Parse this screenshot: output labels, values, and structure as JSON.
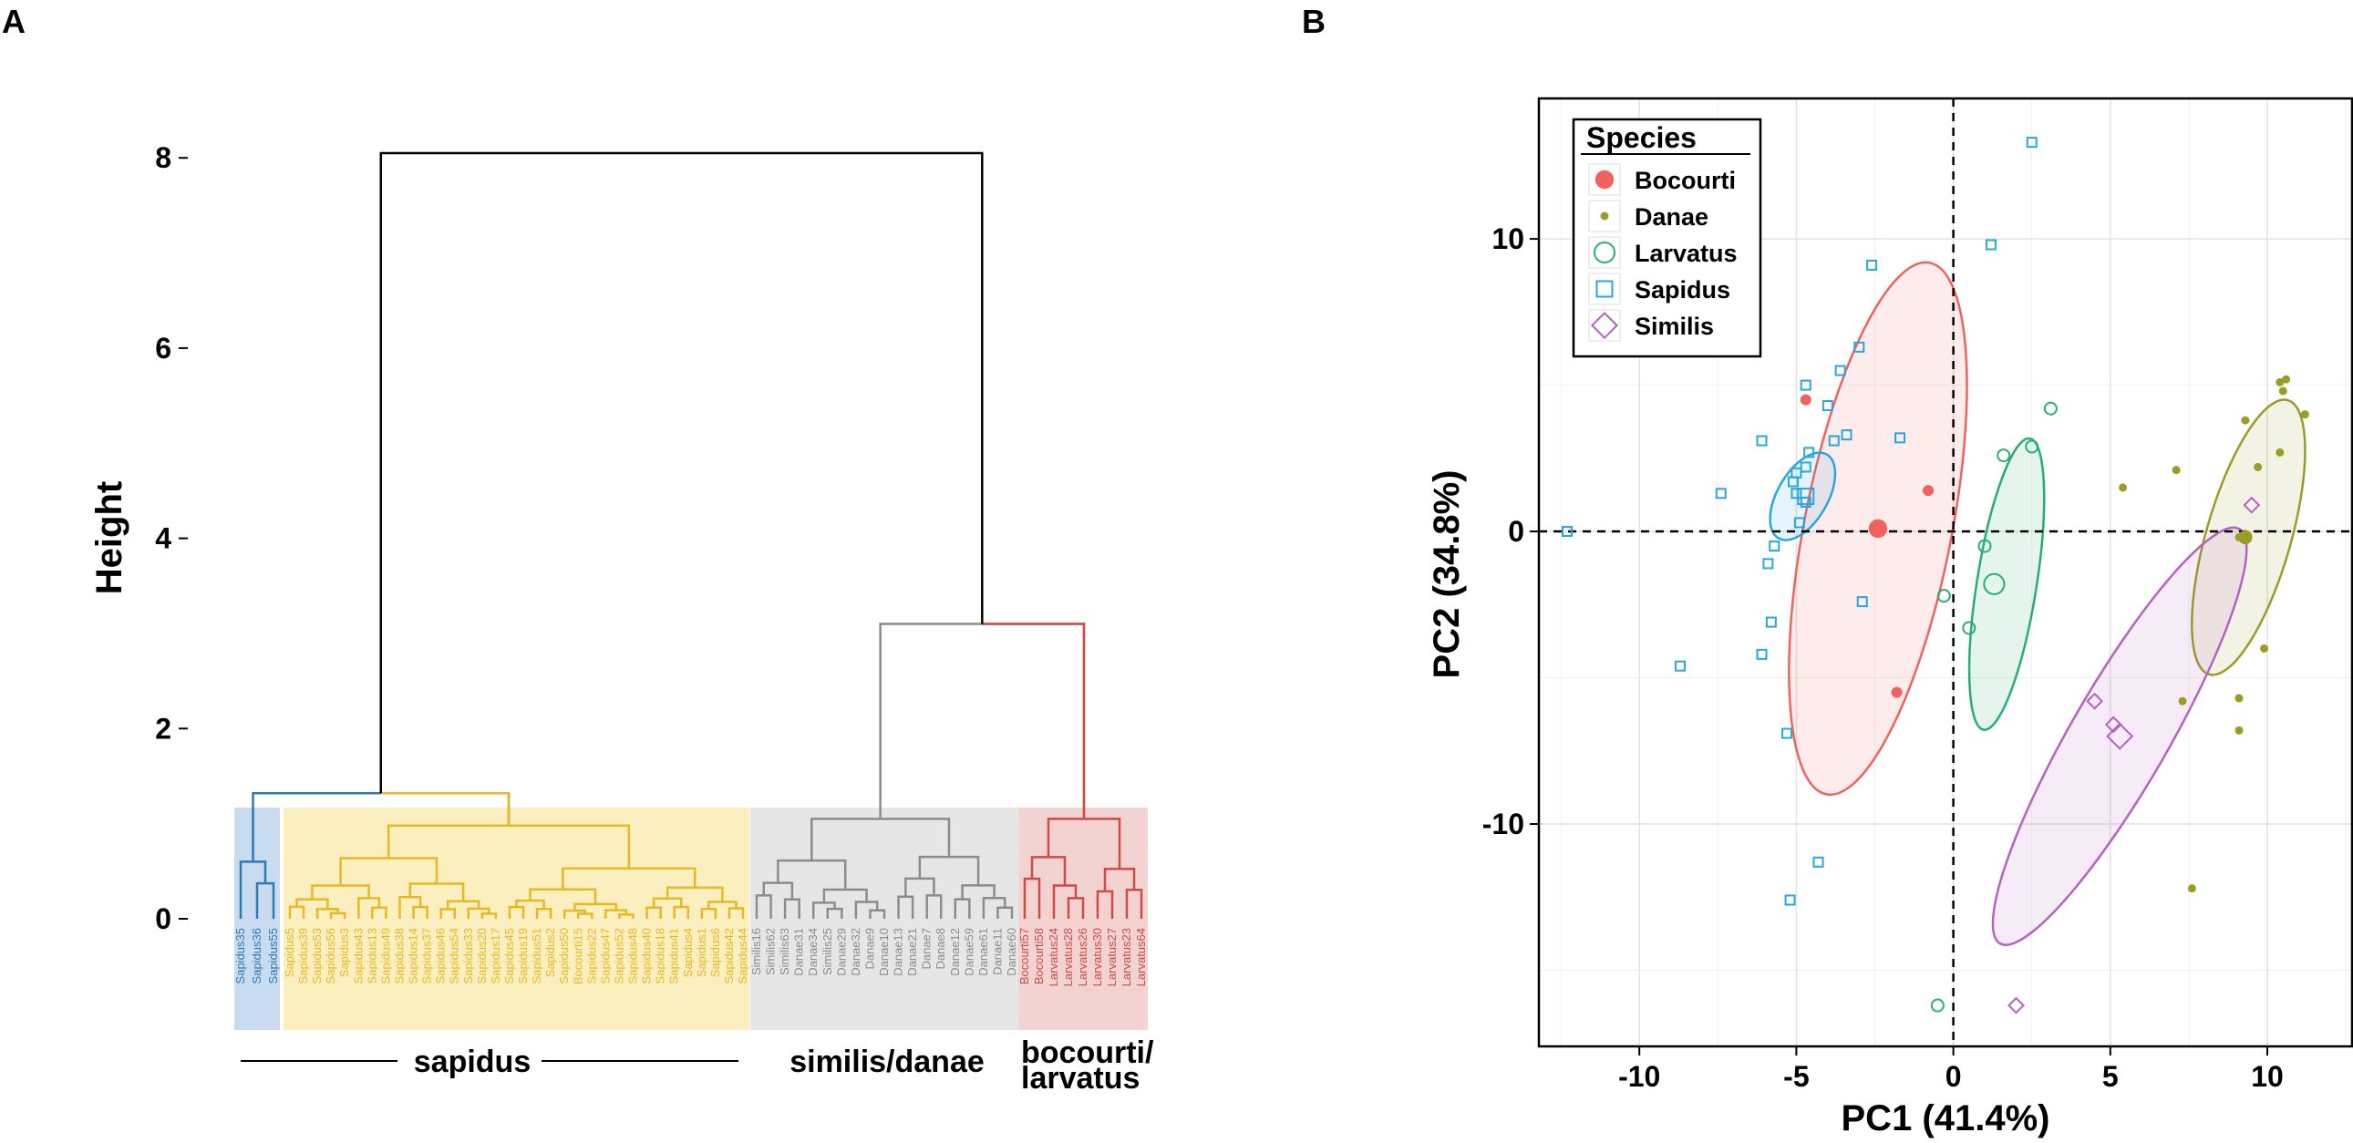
{
  "panels": {
    "a": "A",
    "b": "B"
  },
  "colors": {
    "blue": "#2c7bb6",
    "yellow": "#e8b923",
    "gray": "#8c8c8c",
    "red": "#d04a48",
    "bocourti": "#f0625d",
    "danae": "#9a9c26",
    "larvatus": "#27ae75",
    "sapidus": "#2aa6dc",
    "similis": "#b463c0"
  },
  "chart_data": [
    {
      "type": "dendrogram",
      "ylabel": "Height",
      "y_ticks": [
        "0",
        "2",
        "4",
        "6",
        "8"
      ],
      "ylim": [
        0,
        8.1
      ],
      "root_height": 8.05,
      "groups": [
        {
          "name": "sapidus",
          "label": "sapidus",
          "color_key": "yellow",
          "merge_height": 1.3
        },
        {
          "name": "similis-danae",
          "label": "similis/danae",
          "color_key": "gray",
          "merge_height": 1.05
        },
        {
          "name": "bocourti-larvatus",
          "label": "bocourti/ larvatus",
          "color_key": "red",
          "merge_height": 1.05
        }
      ],
      "clade_merge_heights": {
        "sapidus_clade": 1.32,
        "similis_bocourti_clade": 3.1
      },
      "leaves": [
        {
          "label": "Sapidus35",
          "group": "blue"
        },
        {
          "label": "Sapidus36",
          "group": "blue"
        },
        {
          "label": "Sapidus55",
          "group": "blue"
        },
        {
          "label": "Sapidus5",
          "group": "yellow"
        },
        {
          "label": "Sapidus39",
          "group": "yellow"
        },
        {
          "label": "Sapidus53",
          "group": "yellow"
        },
        {
          "label": "Sapidus56",
          "group": "yellow"
        },
        {
          "label": "Sapidus3",
          "group": "yellow"
        },
        {
          "label": "Sapidus43",
          "group": "yellow"
        },
        {
          "label": "Sapidus13",
          "group": "yellow"
        },
        {
          "label": "Sapidus49",
          "group": "yellow"
        },
        {
          "label": "Sapidus38",
          "group": "yellow"
        },
        {
          "label": "Sapidus14",
          "group": "yellow"
        },
        {
          "label": "Sapidus37",
          "group": "yellow"
        },
        {
          "label": "Sapidus46",
          "group": "yellow"
        },
        {
          "label": "Sapidus54",
          "group": "yellow"
        },
        {
          "label": "Sapidus33",
          "group": "yellow"
        },
        {
          "label": "Sapidus20",
          "group": "yellow"
        },
        {
          "label": "Sapidus17",
          "group": "yellow"
        },
        {
          "label": "Sapidus45",
          "group": "yellow"
        },
        {
          "label": "Sapidus19",
          "group": "yellow"
        },
        {
          "label": "Sapidus51",
          "group": "yellow"
        },
        {
          "label": "Sapidus2",
          "group": "yellow"
        },
        {
          "label": "Sapidus50",
          "group": "yellow"
        },
        {
          "label": "Bocourti15",
          "group": "yellow"
        },
        {
          "label": "Sapidus22",
          "group": "yellow"
        },
        {
          "label": "Sapidus47",
          "group": "yellow"
        },
        {
          "label": "Sapidus52",
          "group": "yellow"
        },
        {
          "label": "Sapidus48",
          "group": "yellow"
        },
        {
          "label": "Sapidus40",
          "group": "yellow"
        },
        {
          "label": "Sapidus18",
          "group": "yellow"
        },
        {
          "label": "Sapidus41",
          "group": "yellow"
        },
        {
          "label": "Sapidus4",
          "group": "yellow"
        },
        {
          "label": "Sapidus1",
          "group": "yellow"
        },
        {
          "label": "Sapidus6",
          "group": "yellow"
        },
        {
          "label": "Sapidus42",
          "group": "yellow"
        },
        {
          "label": "Sapidus44",
          "group": "yellow"
        },
        {
          "label": "Similis16",
          "group": "gray"
        },
        {
          "label": "Similis62",
          "group": "gray"
        },
        {
          "label": "Similis63",
          "group": "gray"
        },
        {
          "label": "Danae31",
          "group": "gray"
        },
        {
          "label": "Danae34",
          "group": "gray"
        },
        {
          "label": "Similis25",
          "group": "gray"
        },
        {
          "label": "Danae29",
          "group": "gray"
        },
        {
          "label": "Danae32",
          "group": "gray"
        },
        {
          "label": "Danae9",
          "group": "gray"
        },
        {
          "label": "Danae10",
          "group": "gray"
        },
        {
          "label": "Danae13",
          "group": "gray"
        },
        {
          "label": "Danae21",
          "group": "gray"
        },
        {
          "label": "Danae7",
          "group": "gray"
        },
        {
          "label": "Danae8",
          "group": "gray"
        },
        {
          "label": "Danae12",
          "group": "gray"
        },
        {
          "label": "Danae59",
          "group": "gray"
        },
        {
          "label": "Danae61",
          "group": "gray"
        },
        {
          "label": "Danae11",
          "group": "gray"
        },
        {
          "label": "Danae60",
          "group": "gray"
        },
        {
          "label": "Bocourti57",
          "group": "red"
        },
        {
          "label": "Bocourti58",
          "group": "red"
        },
        {
          "label": "Larvatus24",
          "group": "red"
        },
        {
          "label": "Larvatus28",
          "group": "red"
        },
        {
          "label": "Larvatus26",
          "group": "red"
        },
        {
          "label": "Larvatus30",
          "group": "red"
        },
        {
          "label": "Larvatus27",
          "group": "red"
        },
        {
          "label": "Larvatus23",
          "group": "red"
        },
        {
          "label": "Larvatus64",
          "group": "red"
        }
      ]
    },
    {
      "type": "scatter",
      "xlabel": "PC1 (41.4%)",
      "ylabel": "PC2 (34.8%)",
      "xlim": [
        -13.2,
        12.7
      ],
      "ylim": [
        -17.6,
        14.8
      ],
      "x_ticks": [
        -10,
        -5,
        0,
        5,
        10
      ],
      "y_ticks": [
        -10,
        0,
        10
      ],
      "x_tick_labels": [
        "-10",
        "-5",
        "0",
        "5",
        "10"
      ],
      "y_tick_labels": [
        "-10",
        "0",
        "10"
      ],
      "grid": true,
      "reference_lines": {
        "x": 0,
        "y": 0,
        "style": "dashed"
      },
      "legend": {
        "title": "Species",
        "position": "top-left",
        "entries": [
          {
            "label": "Bocourti",
            "color_key": "bocourti",
            "shape": "filled-circle"
          },
          {
            "label": "Danae",
            "color_key": "danae",
            "shape": "small-filled-circle"
          },
          {
            "label": "Larvatus",
            "color_key": "larvatus",
            "shape": "open-circle"
          },
          {
            "label": "Sapidus",
            "color_key": "sapidus",
            "shape": "open-square"
          },
          {
            "label": "Similis",
            "color_key": "similis",
            "shape": "open-diamond"
          }
        ]
      },
      "series": [
        {
          "name": "Bocourti",
          "color_key": "bocourti",
          "shape": "filled-circle",
          "centroid": [
            -2.4,
            0.1
          ],
          "ellipse": {
            "center": [
              -2.4,
              0.1
            ],
            "rx": 11.2,
            "ry": 2.35,
            "angle_deg": -79
          },
          "points": [
            [
              -4.7,
              4.5
            ],
            [
              -0.8,
              1.4
            ],
            [
              -1.8,
              -5.5
            ]
          ]
        },
        {
          "name": "Danae",
          "color_key": "danae",
          "shape": "small-filled-circle",
          "centroid": [
            9.3,
            -0.2
          ],
          "ellipse": {
            "center": [
              9.4,
              -0.2
            ],
            "rx": 5.9,
            "ry": 1.35,
            "angle_deg": -74
          },
          "points": [
            [
              10.4,
              5.1
            ],
            [
              10.6,
              5.2
            ],
            [
              10.5,
              4.8
            ],
            [
              11.2,
              4.0
            ],
            [
              9.3,
              3.8
            ],
            [
              10.4,
              2.7
            ],
            [
              9.7,
              2.2
            ],
            [
              7.1,
              2.1
            ],
            [
              5.4,
              1.5
            ],
            [
              9.1,
              -0.2
            ],
            [
              9.9,
              -4.0
            ],
            [
              7.3,
              -5.8
            ],
            [
              9.1,
              -5.7
            ],
            [
              9.1,
              -6.8
            ],
            [
              7.6,
              -12.2
            ]
          ]
        },
        {
          "name": "Larvatus",
          "color_key": "larvatus",
          "shape": "open-circle",
          "centroid": [
            1.3,
            -1.8
          ],
          "ellipse": {
            "center": [
              1.7,
              -1.8
            ],
            "rx": 6.1,
            "ry": 0.95,
            "angle_deg": -81
          },
          "points": [
            [
              3.1,
              4.2
            ],
            [
              2.5,
              2.9
            ],
            [
              1.6,
              2.6
            ],
            [
              1.0,
              -0.5
            ],
            [
              -0.3,
              -2.2
            ],
            [
              0.5,
              -3.3
            ],
            [
              -0.5,
              -16.2
            ]
          ]
        },
        {
          "name": "Sapidus",
          "color_key": "sapidus",
          "shape": "open-square",
          "centroid": [
            -4.7,
            1.2
          ],
          "ellipse": {
            "center": [
              -4.8,
              1.2
            ],
            "rx": 2.0,
            "ry": 0.8,
            "angle_deg": -60
          },
          "points": [
            [
              2.5,
              13.3
            ],
            [
              1.2,
              9.8
            ],
            [
              -2.6,
              9.1
            ],
            [
              -3.0,
              6.3
            ],
            [
              -3.6,
              5.5
            ],
            [
              -4.7,
              5.0
            ],
            [
              -4.0,
              4.3
            ],
            [
              -3.8,
              3.1
            ],
            [
              -3.4,
              3.3
            ],
            [
              -1.7,
              3.2
            ],
            [
              -6.1,
              3.1
            ],
            [
              -4.6,
              2.7
            ],
            [
              -4.7,
              2.2
            ],
            [
              -5.0,
              2.0
            ],
            [
              -5.1,
              1.7
            ],
            [
              -7.4,
              1.3
            ],
            [
              -5.0,
              1.3
            ],
            [
              -4.7,
              1.0
            ],
            [
              -4.9,
              0.3
            ],
            [
              -5.7,
              -0.5
            ],
            [
              -5.9,
              -1.1
            ],
            [
              -12.3,
              0.0
            ],
            [
              -2.9,
              -2.4
            ],
            [
              -5.8,
              -3.1
            ],
            [
              -6.1,
              -4.2
            ],
            [
              -8.7,
              -4.6
            ],
            [
              -5.3,
              -6.9
            ],
            [
              -4.3,
              -11.3
            ],
            [
              -5.2,
              -12.6
            ]
          ]
        },
        {
          "name": "Similis",
          "color_key": "similis",
          "shape": "open-diamond",
          "centroid": [
            5.3,
            -7.0
          ],
          "ellipse": {
            "center": [
              5.3,
              -7.0
            ],
            "rx": 9.9,
            "ry": 1.55,
            "angle_deg": -60
          },
          "points": [
            [
              4.5,
              -5.8
            ],
            [
              5.1,
              -6.6
            ],
            [
              9.5,
              0.9
            ],
            [
              2.0,
              -16.2
            ]
          ]
        }
      ]
    }
  ],
  "dendrogram_group_labels": {
    "sapidus": "sapidus",
    "similis_danae": "similis/danae",
    "bocourti": "bocourti/",
    "larvatus": "larvatus"
  }
}
